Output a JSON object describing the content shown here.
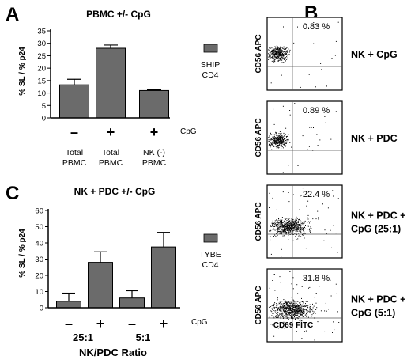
{
  "panel_a": {
    "letter": "A",
    "title": "PBMC +/- CpG",
    "ylabel": "% SL / % p24",
    "legend_line1": "SHIP",
    "legend_line2": "CD4",
    "cpg_label": "CpG",
    "cat_lines": [
      [
        "Total",
        "PBMC"
      ],
      [
        "Total",
        "PBMC"
      ],
      [
        "NK (-)",
        "PBMC"
      ]
    ]
  },
  "panel_b": {
    "letter": "B",
    "ylabel": "CD56 APC",
    "xlabel": "CD69 FITC"
  },
  "panel_c": {
    "letter": "C",
    "title": "NK + PDC +/- CpG",
    "ylabel": "% SL / % p24",
    "legend_line1": "TYBE",
    "legend_line2": "CD4",
    "cpg_label": "CpG",
    "group_labels": [
      "25:1",
      "5:1"
    ],
    "xlabel": "NK/PDC Ratio"
  },
  "chart_data": [
    {
      "panel": "A",
      "type": "bar",
      "title": "PBMC +/- CpG",
      "ylabel": "% SL / % p24",
      "ylim": [
        0,
        35
      ],
      "yticks": [
        0,
        5,
        10,
        15,
        20,
        25,
        30,
        35
      ],
      "categories": [
        "Total PBMC",
        "Total PBMC",
        "NK (-) PBMC"
      ],
      "cpg": [
        "-",
        "+",
        "+"
      ],
      "series": [
        {
          "name": "SHIP CD4",
          "values": [
            13.3,
            28.0,
            11.0
          ],
          "errors": [
            2.2,
            1.3,
            0.3
          ]
        }
      ],
      "color": "#6b6b6b"
    },
    {
      "panel": "C",
      "type": "bar",
      "title": "NK + PDC +/- CpG",
      "ylabel": "% SL / % p24",
      "xlabel": "NK/PDC Ratio",
      "ylim": [
        0,
        60
      ],
      "yticks": [
        0,
        10,
        20,
        30,
        40,
        50,
        60
      ],
      "categories": [
        "25:1",
        "25:1",
        "5:1",
        "5:1"
      ],
      "cpg": [
        "-",
        "+",
        "-",
        "+"
      ],
      "series": [
        {
          "name": "TYBE CD4",
          "values": [
            4.0,
            28.0,
            6.0,
            37.5
          ],
          "errors": [
            5.0,
            6.5,
            4.5,
            9.0
          ]
        }
      ],
      "color": "#6b6b6b"
    },
    {
      "panel": "B",
      "type": "scatter",
      "xlabel": "CD69 FITC",
      "ylabel": "CD56 APC",
      "plots": [
        {
          "condition_lines": [
            "NK + CpG"
          ],
          "percent": "0.83 %"
        },
        {
          "condition_lines": [
            "NK + PDC"
          ],
          "percent": "0.89 %"
        },
        {
          "condition_lines": [
            "NK + PDC +",
            "CpG (25:1)"
          ],
          "percent": "22.4 %"
        },
        {
          "condition_lines": [
            "NK + PDC +",
            "CpG (5:1)"
          ],
          "percent": "31.8 %"
        }
      ]
    }
  ]
}
